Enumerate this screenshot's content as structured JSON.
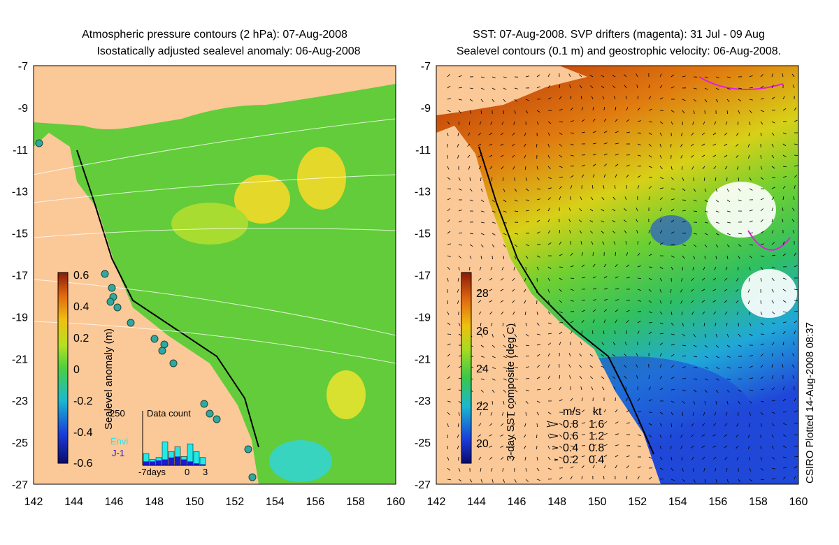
{
  "left_panel": {
    "title_line1": "Atmospheric pressure contours (2 hPa): 07-Aug-2008",
    "title_line2": "Isostatically adjusted sealevel anomaly: 06-Aug-2008",
    "colorbar": {
      "label": "Sealevel anomaly (m)",
      "ticks": [
        "0.6",
        "0.4",
        "0.2",
        "0",
        "-0.2",
        "-0.4",
        "-0.6"
      ]
    },
    "data_count": {
      "title": "Data count",
      "ymax_label": "250",
      "x_labels": [
        "-7days",
        "0",
        "3"
      ],
      "legend": [
        {
          "label": "Envi",
          "color": "#22e8e8"
        },
        {
          "label": "J-1",
          "color": "#1a1ad0"
        }
      ],
      "bars_envi": [
        60,
        30,
        40,
        120,
        70,
        95,
        45,
        110,
        70,
        40
      ],
      "bars_j1": [
        20,
        20,
        25,
        30,
        40,
        45,
        30,
        20,
        10,
        5
      ]
    },
    "map_color": "#6fd43a"
  },
  "right_panel": {
    "title_line1": "SST: 07-Aug-2008. SVP drifters (magenta): 31 Jul - 09 Aug",
    "title_line2": "Sealevel contours (0.1 m) and geostrophic velocity: 06-Aug-2008.",
    "colorbar": {
      "label": "3-day SST composite (deg C)",
      "ticks": [
        "28",
        "26",
        "24",
        "22",
        "20"
      ]
    },
    "velocity_legend": {
      "header_ms": "m/s",
      "header_kt": "kt",
      "rows": [
        {
          "ms": "0.8",
          "kt": "1.6"
        },
        {
          "ms": "0.6",
          "kt": "1.2"
        },
        {
          "ms": "0.4",
          "kt": "0.8"
        },
        {
          "ms": "0.2",
          "kt": "0.4"
        }
      ]
    }
  },
  "axes": {
    "y_ticks": [
      "-7",
      "-9",
      "-11",
      "-13",
      "-15",
      "-17",
      "-19",
      "-21",
      "-23",
      "-25",
      "-27"
    ],
    "x_ticks": [
      "142",
      "144",
      "146",
      "148",
      "150",
      "152",
      "154",
      "156",
      "158",
      "160"
    ],
    "land_color": "#fbc898"
  },
  "credit": "CSIRO Plotted 14-Aug-2008 08:37"
}
